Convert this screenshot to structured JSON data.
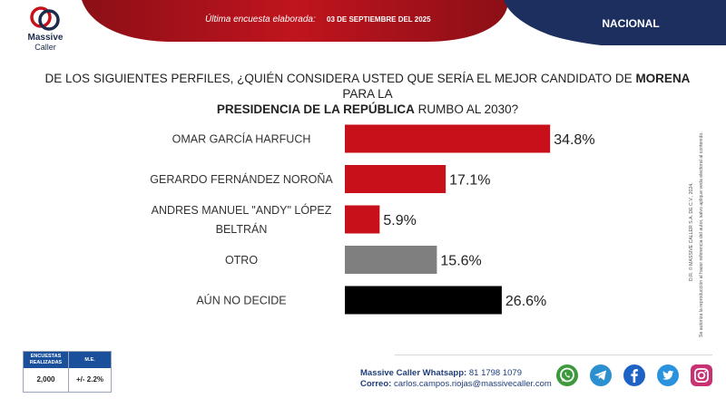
{
  "header": {
    "brand_line1": "Massive",
    "brand_line2": "Caller",
    "survey_label": "Última encuesta elaborada:",
    "survey_date": "03 DE SEPTIEMBRE DEL 2025",
    "scope": "NACIONAL"
  },
  "question": {
    "part1": "DE LOS SIGUIENTES PERFILES, ¿QUIÉN CONSIDERA USTED QUE SERÍA EL MEJOR CANDIDATO DE ",
    "party": "MORENA",
    "part2": " PARA LA ",
    "office": "PRESIDENCIA DE LA REPÚBLICA",
    "part3": " RUMBO AL 2030?"
  },
  "chart_data": {
    "type": "bar",
    "orientation": "horizontal",
    "title": "",
    "xlabel": "",
    "ylabel": "",
    "xlim": [
      0,
      40
    ],
    "grid": false,
    "legend": "none",
    "categories": [
      [
        "OMAR GARCÍA HARFUCH"
      ],
      [
        "GERARDO FERNÁNDEZ NOROÑA"
      ],
      [
        "ANDRES MANUEL \"ANDY\" LÓPEZ",
        "BELTRÁN"
      ],
      [
        "OTRO"
      ],
      [
        "AÚN NO DECIDE"
      ]
    ],
    "values": [
      34.8,
      17.1,
      5.9,
      15.6,
      26.6
    ],
    "value_labels": [
      "34.8%",
      "17.1%",
      "5.9%",
      "15.6%",
      "26.6%"
    ],
    "colors": [
      "#c8101a",
      "#c8101a",
      "#c8101a",
      "#7f7f7f",
      "#000000"
    ]
  },
  "side_note": {
    "line1": "D.R. © MASSIVE CALLER S.A. DE C.V., 2024.",
    "line2": "Se autoriza la reproducción al hacer referencia del autor, salvo aplique veda electoral al contenido."
  },
  "stats": {
    "col1_line1": "ENCUESTAS",
    "col1_line2": "REALIZADAS",
    "col2": "M.E.",
    "count": "2,000",
    "margin": "+/- 2.2%"
  },
  "contact": {
    "whatsapp_label": "Massive Caller Whatsapp:",
    "whatsapp_value": "81 1798 1079",
    "email_label": "Correo:",
    "email_value": "carlos.campos.riojas@massivecaller.com"
  },
  "socials": [
    {
      "icon": "whatsapp-icon",
      "color": "#3c9a3c"
    },
    {
      "icon": "telegram-icon",
      "color": "#2b8fd0"
    },
    {
      "icon": "facebook-icon",
      "color": "#1e62c6"
    },
    {
      "icon": "twitter-icon",
      "color": "#2b93de"
    },
    {
      "icon": "instagram-icon",
      "color": "#c93272"
    }
  ]
}
